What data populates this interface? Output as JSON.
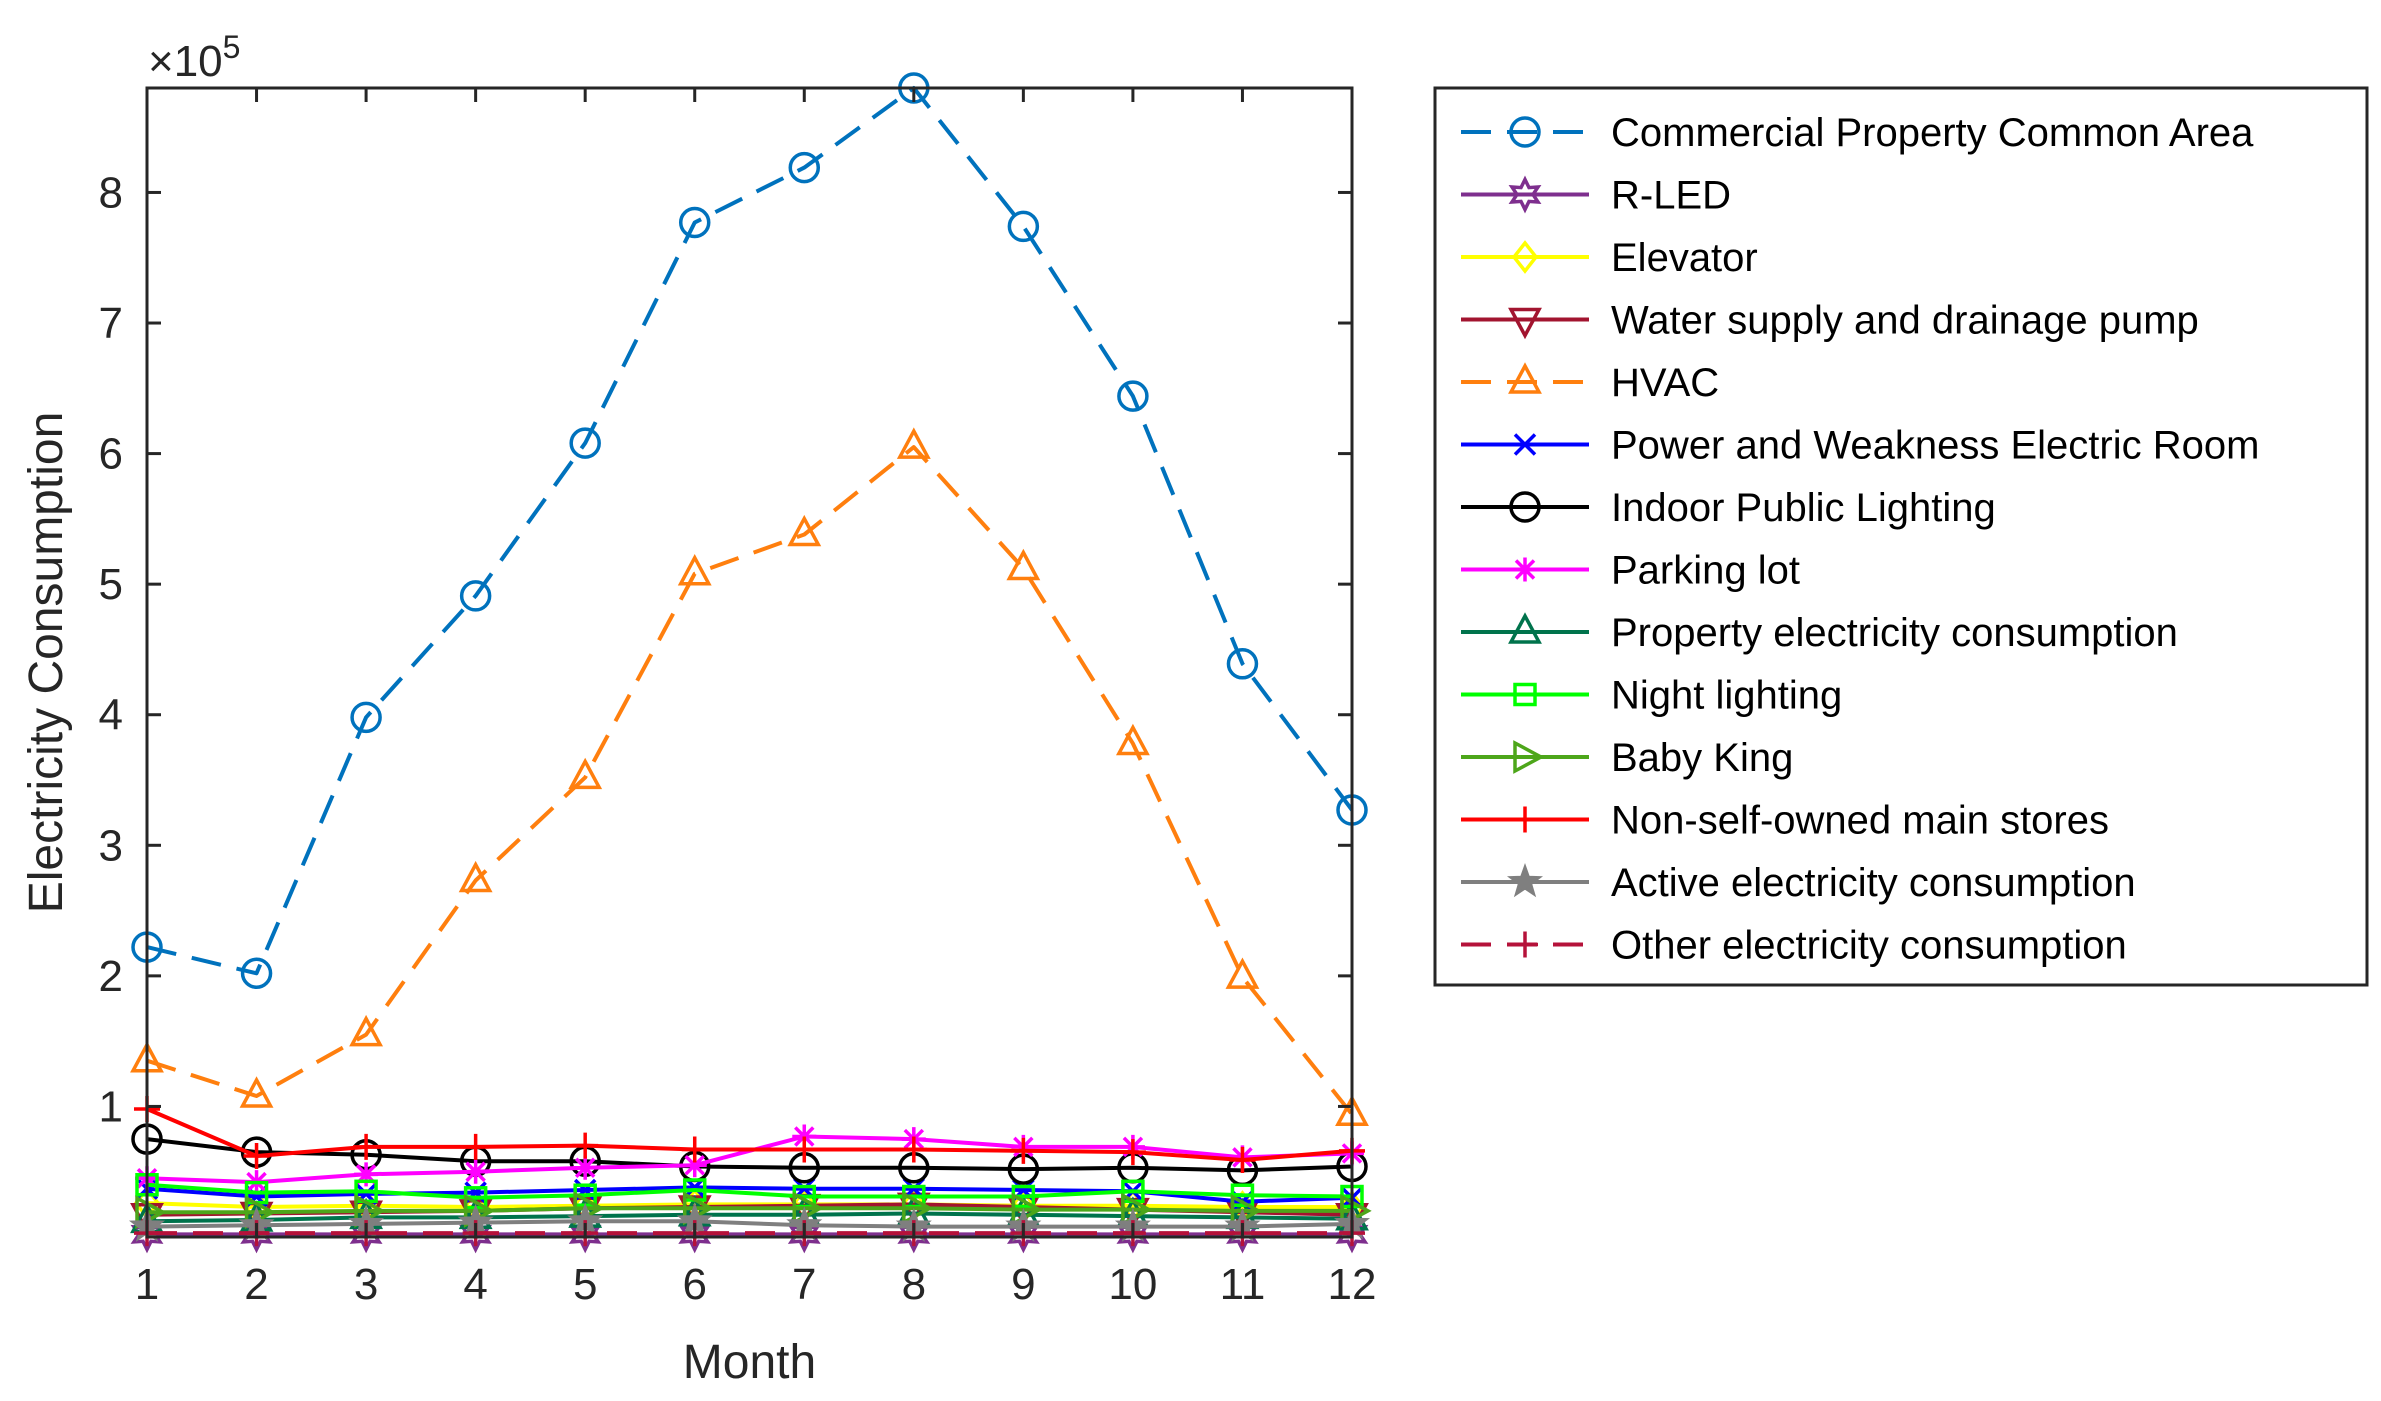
{
  "chart_data": {
    "type": "line",
    "xlabel": "Month",
    "ylabel": "Electricity Consumption",
    "exponent_base": "×10",
    "exponent_power": "5",
    "x": [
      1,
      2,
      3,
      4,
      5,
      6,
      7,
      8,
      9,
      10,
      11,
      12
    ],
    "xlim": [
      1,
      12
    ],
    "ylim": [
      0,
      88000
    ],
    "yticks": [
      10000,
      20000,
      30000,
      40000,
      50000,
      60000,
      70000,
      80000
    ],
    "ytick_labels": [
      "1",
      "2",
      "3",
      "4",
      "5",
      "6",
      "7",
      "8"
    ],
    "grid": false,
    "legend_position": "outside-right",
    "series": [
      {
        "name": "Commercial Property Common Area",
        "color": "#0072BD",
        "dash": "dashed",
        "marker": "circle",
        "values": [
          22200,
          20200,
          39800,
          49100,
          60800,
          77700,
          81900,
          88000,
          77400,
          64400,
          43900,
          32700
        ]
      },
      {
        "name": "R-LED",
        "color": "#7E2F8E",
        "dash": "solid",
        "marker": "hexagram",
        "values": [
          200,
          200,
          200,
          200,
          200,
          200,
          200,
          200,
          200,
          200,
          200,
          200
        ]
      },
      {
        "name": "Elevator",
        "color": "#FFFF00",
        "dash": "solid",
        "marker": "diamond",
        "values": [
          2600,
          2300,
          2400,
          2300,
          2400,
          2500,
          2500,
          2500,
          2400,
          2400,
          2300,
          2300
        ]
      },
      {
        "name": "Water supply and drainage pump",
        "color": "#A2142F",
        "dash": "solid",
        "marker": "triangle-down",
        "values": [
          1700,
          1800,
          1900,
          2000,
          2200,
          2300,
          2400,
          2500,
          2300,
          2100,
          1900,
          1700
        ]
      },
      {
        "name": "HVAC",
        "color": "#FF7F0E",
        "dash": "dashed",
        "marker": "triangle-up",
        "values": [
          13500,
          10800,
          15500,
          27300,
          35200,
          50800,
          53800,
          60500,
          51200,
          37800,
          19900,
          9400
        ]
      },
      {
        "name": "Power and Weakness Electric Room",
        "color": "#0000FF",
        "dash": "solid",
        "marker": "x",
        "values": [
          3700,
          3100,
          3300,
          3400,
          3600,
          3800,
          3700,
          3700,
          3600,
          3500,
          2700,
          3000
        ]
      },
      {
        "name": "Indoor Public Lighting",
        "color": "#000000",
        "dash": "solid",
        "marker": "circle",
        "values": [
          7500,
          6500,
          6300,
          5800,
          5800,
          5400,
          5300,
          5300,
          5200,
          5300,
          5100,
          5400
        ]
      },
      {
        "name": "Parking lot",
        "color": "#FF00FF",
        "dash": "solid",
        "marker": "asterisk",
        "values": [
          4500,
          4200,
          4800,
          5000,
          5300,
          5500,
          7700,
          7500,
          6900,
          6900,
          6100,
          6400
        ]
      },
      {
        "name": "Property electricity consumption",
        "color": "#00734C",
        "dash": "solid",
        "marker": "triangle-up",
        "values": [
          1200,
          1300,
          1500,
          1500,
          1600,
          1700,
          1700,
          1800,
          1700,
          1600,
          1500,
          1400
        ]
      },
      {
        "name": "Night lighting",
        "color": "#00FF00",
        "dash": "solid",
        "marker": "square",
        "values": [
          4000,
          3400,
          3500,
          3000,
          3200,
          3600,
          3100,
          3100,
          3100,
          3500,
          3200,
          3100
        ]
      },
      {
        "name": "Baby King",
        "color": "#4DA61A",
        "dash": "solid",
        "marker": "triangle-right",
        "values": [
          1900,
          1900,
          2000,
          2000,
          2200,
          2200,
          2200,
          2200,
          2100,
          2100,
          2000,
          2000
        ]
      },
      {
        "name": "Non-self-owned main stores",
        "color": "#FF0000",
        "dash": "solid",
        "marker": "plus",
        "values": [
          9800,
          6200,
          6900,
          6900,
          7000,
          6700,
          6700,
          6700,
          6600,
          6500,
          5900,
          6600
        ]
      },
      {
        "name": "Active electricity consumption",
        "color": "#7F7F7F",
        "dash": "solid",
        "marker": "pentagram",
        "values": [
          800,
          900,
          1000,
          1100,
          1200,
          1200,
          900,
          800,
          800,
          800,
          800,
          1000
        ]
      },
      {
        "name": "Other electricity consumption",
        "color": "#B5123A",
        "dash": "dashed",
        "marker": "plus",
        "values": [
          300,
          300,
          300,
          300,
          300,
          300,
          300,
          300,
          300,
          300,
          300,
          300
        ]
      }
    ]
  }
}
